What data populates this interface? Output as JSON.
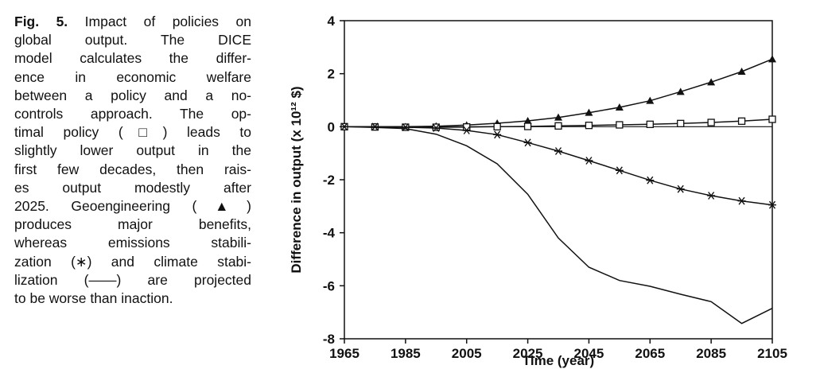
{
  "caption": {
    "fig_label": "Fig. 5.",
    "lines": [
      "Impact of policies on",
      "global output. The DICE",
      "model calculates the differ-",
      "ence in economic welfare",
      "between a policy and a no-",
      "controls approach. The op-",
      "timal policy (□) leads to",
      "slightly lower output in the",
      "first few decades, then rais-",
      "es output modestly after",
      "2025. Geoengineering (▲)",
      "produces major benefits,",
      "whereas emissions stabili-",
      "zation (∗) and climate stabi-",
      "lization (——) are projected",
      "to be worse than inaction."
    ]
  },
  "chart_data": {
    "type": "line",
    "xlabel": "Time (year)",
    "ylabel": "Difference in output (x 10¹² $)",
    "x_ticks": [
      1965,
      1985,
      2005,
      2025,
      2045,
      2065,
      2085,
      2105
    ],
    "y_ticks": [
      4,
      2,
      0,
      -2,
      -4,
      -6,
      -8
    ],
    "xlim": [
      1965,
      2105
    ],
    "ylim": [
      -8,
      4
    ],
    "grid": false,
    "legend": "none",
    "x": [
      1965,
      1975,
      1985,
      1995,
      2005,
      2015,
      2025,
      2035,
      2045,
      2055,
      2065,
      2075,
      2085,
      2095,
      2105
    ],
    "series": [
      {
        "marker": "triangle",
        "values": [
          0,
          0,
          0,
          0.02,
          0.06,
          0.13,
          0.22,
          0.35,
          0.53,
          0.73,
          0.98,
          1.32,
          1.68,
          2.08,
          2.55
        ]
      },
      {
        "marker": "square",
        "values": [
          0,
          -0.01,
          -0.02,
          -0.02,
          -0.01,
          0.0,
          0.01,
          0.03,
          0.05,
          0.07,
          0.09,
          0.12,
          0.16,
          0.21,
          0.28
        ]
      },
      {
        "marker": "asterisk",
        "values": [
          0,
          0,
          -0.02,
          -0.05,
          -0.14,
          -0.3,
          -0.6,
          -0.92,
          -1.28,
          -1.65,
          -2.02,
          -2.35,
          -2.6,
          -2.8,
          -2.95
        ]
      },
      {
        "marker": "none",
        "values": [
          0,
          -0.03,
          -0.07,
          -0.28,
          -0.72,
          -1.4,
          -2.55,
          -4.2,
          -5.3,
          -5.8,
          -6.02,
          -6.32,
          -6.6,
          -7.42,
          -6.85
        ]
      }
    ]
  }
}
